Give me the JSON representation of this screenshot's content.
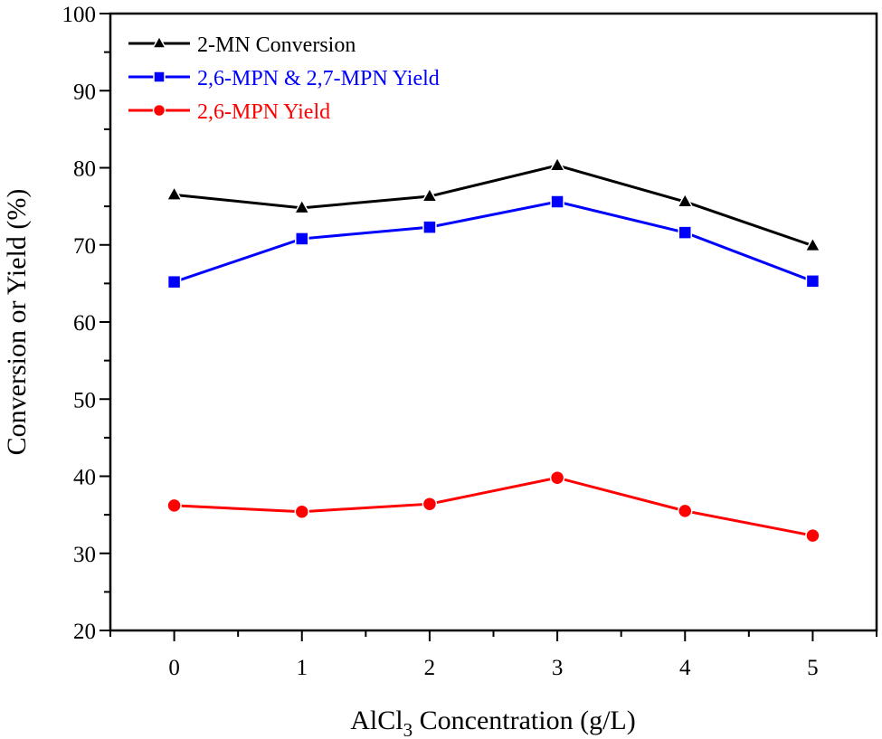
{
  "chart_data": {
    "type": "line",
    "title": "",
    "xlabel": "AlCl3 Concentration (g/L)",
    "xlabel_parts": {
      "main": "AlCl",
      "sub": "3",
      "rest": " Concentration (g/L)"
    },
    "ylabel": "Conversion or Yield (%)",
    "x": [
      0,
      1,
      2,
      3,
      4,
      5
    ],
    "xticks": [
      "0",
      "1",
      "2",
      "3",
      "4",
      "5"
    ],
    "xlim": [
      -0.5,
      5.5
    ],
    "ylim": [
      20,
      100
    ],
    "yticks": [
      "20",
      "30",
      "40",
      "50",
      "60",
      "70",
      "80",
      "90",
      "100"
    ],
    "grid": false,
    "legend_position": "top-left",
    "series": [
      {
        "name": "2-MN Conversion",
        "color": "#000000",
        "marker": "triangle",
        "values": [
          76.5,
          74.8,
          76.3,
          80.3,
          75.6,
          69.9
        ]
      },
      {
        "name": "2,6-MPN & 2,7-MPN Yield",
        "color": "#0000ff",
        "marker": "square",
        "values": [
          65.2,
          70.8,
          72.3,
          75.6,
          71.6,
          65.3
        ]
      },
      {
        "name": "2,6-MPN Yield",
        "color": "#ff0000",
        "marker": "circle",
        "values": [
          36.2,
          35.4,
          36.4,
          39.8,
          35.5,
          32.3
        ]
      }
    ]
  }
}
